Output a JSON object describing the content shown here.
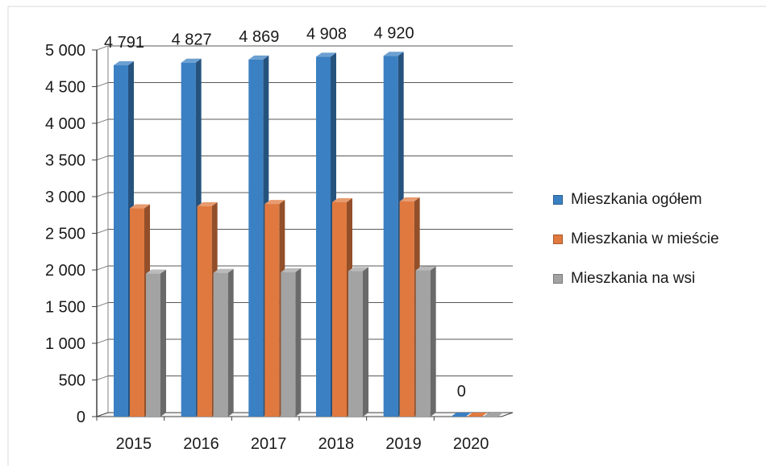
{
  "chart_data": {
    "type": "bar",
    "categories": [
      "2015",
      "2016",
      "2017",
      "2018",
      "2019",
      "2020"
    ],
    "series": [
      {
        "name": "Mieszkania ogółem",
        "values": [
          4791,
          4827,
          4869,
          4908,
          4920,
          0
        ],
        "color": "#3b80c2"
      },
      {
        "name": "Mieszkania w mieście",
        "values": [
          2840,
          2870,
          2900,
          2925,
          2935,
          0
        ],
        "color": "#e0793f"
      },
      {
        "name": "Mieszkania na wsi",
        "values": [
          1950,
          1960,
          1970,
          1985,
          1995,
          0
        ],
        "color": "#a3a3a3"
      }
    ],
    "data_labels": [
      "4 791",
      "4 827",
      "4 869",
      "4 908",
      "4 920",
      "0"
    ],
    "y_ticks": [
      "0",
      "500",
      "1 000",
      "1 500",
      "2 000",
      "2 500",
      "3 000",
      "3 500",
      "4 000",
      "4 500",
      "5 000"
    ],
    "ylim": [
      0,
      5000
    ],
    "grid": true,
    "legend_position": "right",
    "style": "3d-clustered-bar"
  }
}
